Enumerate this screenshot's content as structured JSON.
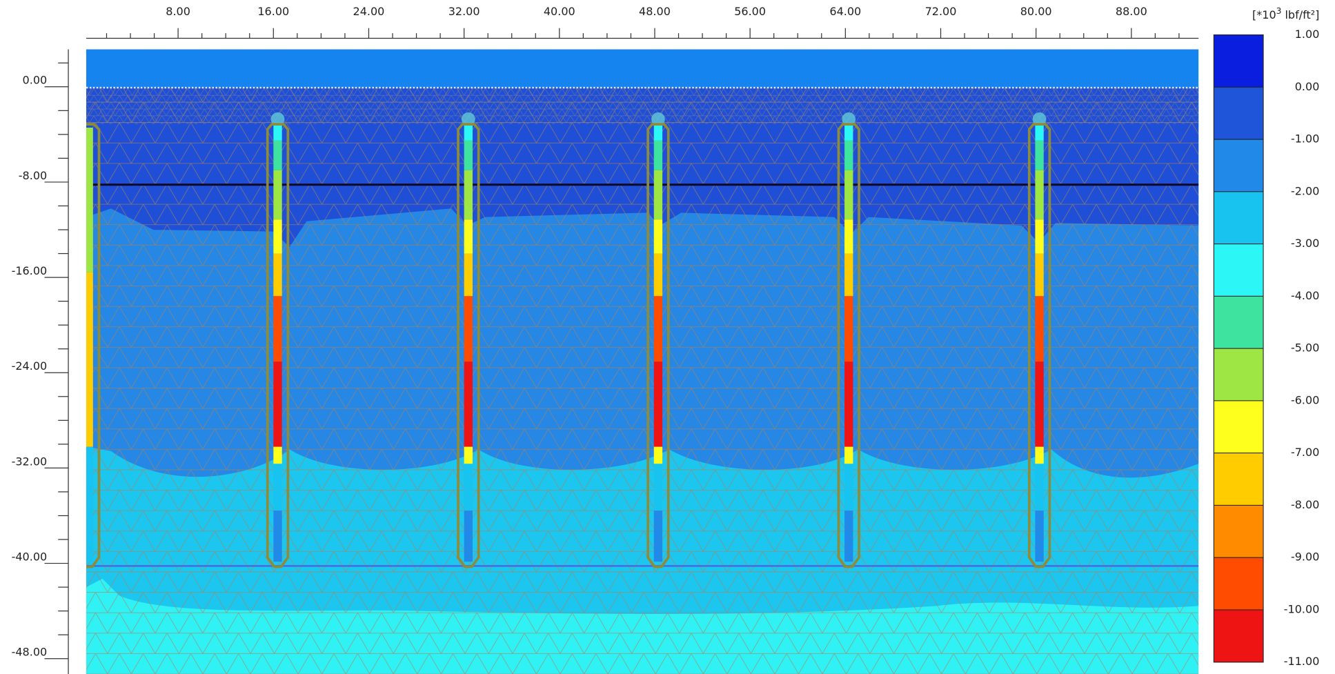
{
  "chart_data": {
    "type": "contour",
    "xlim": [
      0.29,
      93.64
    ],
    "ylim": [
      -49.29,
      3.14
    ],
    "xticks": [
      {
        "value": 8,
        "label": "8.00"
      },
      {
        "value": 16,
        "label": "16.00"
      },
      {
        "value": 24,
        "label": "24.00"
      },
      {
        "value": 32,
        "label": "32.00"
      },
      {
        "value": 40,
        "label": "40.00"
      },
      {
        "value": 48,
        "label": "48.00"
      },
      {
        "value": 56,
        "label": "56.00"
      },
      {
        "value": 64,
        "label": "64.00"
      },
      {
        "value": 72,
        "label": "72.00"
      },
      {
        "value": 80,
        "label": "80.00"
      },
      {
        "value": 88,
        "label": "88.00"
      }
    ],
    "yticks": [
      {
        "value": 0,
        "label": "0.00"
      },
      {
        "value": -8,
        "label": "-8.00"
      },
      {
        "value": -16,
        "label": "-16.00"
      },
      {
        "value": -24,
        "label": "-24.00"
      },
      {
        "value": -32,
        "label": "-32.00"
      },
      {
        "value": -40,
        "label": "-40.00"
      },
      {
        "value": -48,
        "label": "-48.00"
      }
    ],
    "colorbar": {
      "unit": {
        "prefix": "[*10",
        "exponent": "3",
        "suffix": "lbf/ft²]"
      },
      "levels": [
        {
          "value": 1,
          "label": "1.00"
        },
        {
          "value": 0,
          "label": "0.00"
        },
        {
          "value": -1,
          "label": "-1.00"
        },
        {
          "value": -2,
          "label": "-2.00"
        },
        {
          "value": -3,
          "label": "-3.00"
        },
        {
          "value": -4,
          "label": "-4.00"
        },
        {
          "value": -5,
          "label": "-5.00"
        },
        {
          "value": -6,
          "label": "-6.00"
        },
        {
          "value": -7,
          "label": "-7.00"
        },
        {
          "value": -8,
          "label": "-8.00"
        },
        {
          "value": -9,
          "label": "-9.00"
        },
        {
          "value": -10,
          "label": "-10.00"
        },
        {
          "value": -11,
          "label": "-11.00"
        }
      ],
      "colors": [
        "#0a1ee0",
        "#1f55d8",
        "#2189e8",
        "#19c3ef",
        "#2cf6f6",
        "#3fe3a0",
        "#9ee644",
        "#ffff1e",
        "#ffcc00",
        "#ff8c00",
        "#ff4c00",
        "#ee1414"
      ]
    }
  }
}
